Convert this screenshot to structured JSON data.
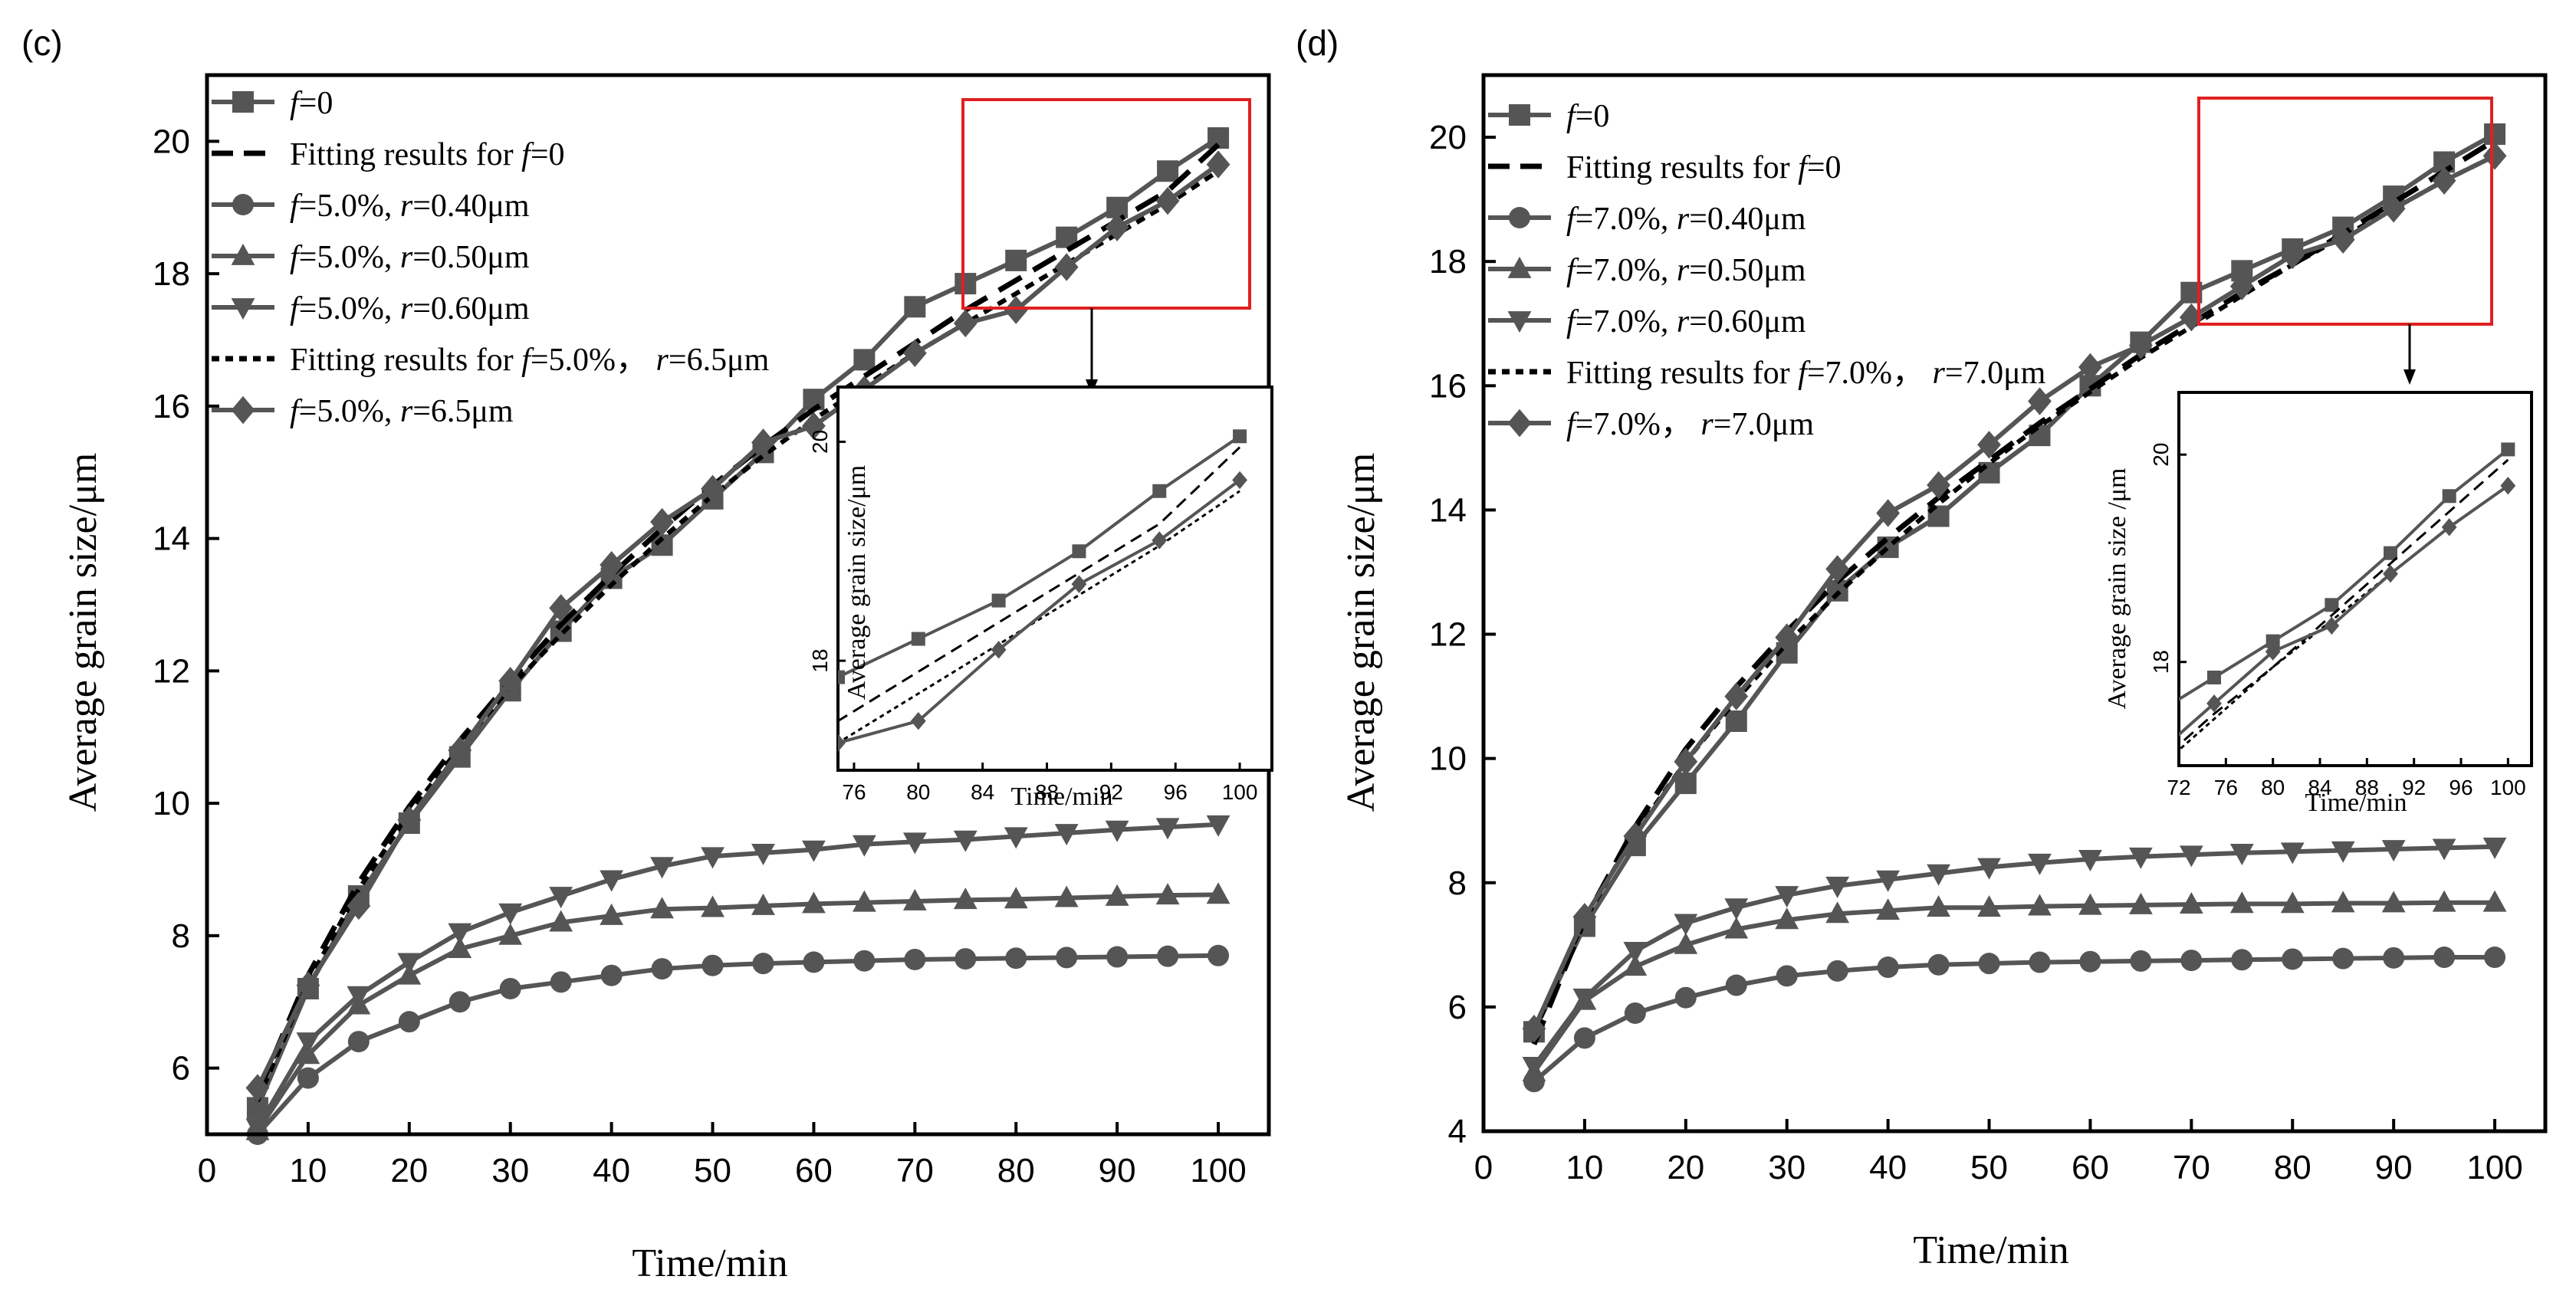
{
  "colors": {
    "series": "#555555",
    "fit": "#000000",
    "highlight": "#e02020",
    "axis": "#000000"
  },
  "chart_data": [
    {
      "type": "line",
      "panel_label": "(c)",
      "xlabel": "Time/min",
      "ylabel": "Average grain size/μm",
      "xlim": [
        0,
        105
      ],
      "ylim": [
        5,
        21
      ],
      "xticks": [
        0,
        10,
        20,
        30,
        40,
        50,
        60,
        70,
        80,
        90,
        100
      ],
      "yticks": [
        6,
        8,
        10,
        12,
        14,
        16,
        18,
        20
      ],
      "legend_position": "top-left",
      "series": [
        {
          "legend_italic": "f",
          "legend_text": "=0",
          "style": "solid",
          "marker": "square",
          "x": [
            5,
            10,
            15,
            20,
            25,
            30,
            35,
            40,
            45,
            50,
            55,
            60,
            65,
            70,
            75,
            80,
            85,
            90,
            95,
            100
          ],
          "values": [
            5.4,
            7.2,
            8.6,
            9.7,
            10.7,
            11.7,
            12.6,
            13.4,
            13.9,
            14.6,
            15.3,
            16.1,
            16.7,
            17.5,
            17.85,
            18.2,
            18.55,
            19.0,
            19.55,
            20.05
          ]
        },
        {
          "legend_text": "Fitting results for ",
          "legend_italic": "f",
          "legend_tail": "=0",
          "style": "dashed",
          "marker": "none",
          "x": [
            5,
            10,
            15,
            20,
            25,
            30,
            35,
            40,
            45,
            50,
            55,
            60,
            65,
            70,
            75,
            80,
            85,
            90,
            95,
            100
          ],
          "values": [
            5.6,
            7.4,
            8.8,
            9.95,
            10.95,
            11.85,
            12.7,
            13.45,
            14.15,
            14.8,
            15.4,
            15.95,
            16.45,
            16.95,
            17.45,
            17.9,
            18.35,
            18.8,
            19.25,
            19.95
          ]
        },
        {
          "legend_italic": "f",
          "legend_text": "=5.0%, ",
          "legend_italic2": "r",
          "legend_tail": "=0.40μm",
          "style": "solid",
          "marker": "circle",
          "x": [
            5,
            10,
            15,
            20,
            25,
            30,
            35,
            40,
            45,
            50,
            55,
            60,
            65,
            70,
            75,
            80,
            85,
            90,
            95,
            100
          ],
          "values": [
            5.0,
            5.85,
            6.4,
            6.7,
            7.0,
            7.2,
            7.3,
            7.4,
            7.5,
            7.55,
            7.58,
            7.6,
            7.62,
            7.64,
            7.65,
            7.66,
            7.67,
            7.68,
            7.69,
            7.7
          ]
        },
        {
          "legend_italic": "f",
          "legend_text": "=5.0%, ",
          "legend_italic2": "r",
          "legend_tail": "=0.50μm",
          "style": "solid",
          "marker": "triangle-up",
          "x": [
            5,
            10,
            15,
            20,
            25,
            30,
            35,
            40,
            45,
            50,
            55,
            60,
            65,
            70,
            75,
            80,
            85,
            90,
            95,
            100
          ],
          "values": [
            5.05,
            6.2,
            6.95,
            7.4,
            7.8,
            8.0,
            8.2,
            8.3,
            8.4,
            8.42,
            8.45,
            8.48,
            8.5,
            8.52,
            8.54,
            8.55,
            8.57,
            8.59,
            8.61,
            8.62
          ]
        },
        {
          "legend_italic": "f",
          "legend_text": "=5.0%, ",
          "legend_italic2": "r",
          "legend_tail": "=0.60μm",
          "style": "solid",
          "marker": "triangle-down",
          "x": [
            5,
            10,
            15,
            20,
            25,
            30,
            35,
            40,
            45,
            50,
            55,
            60,
            65,
            70,
            75,
            80,
            85,
            90,
            95,
            100
          ],
          "values": [
            5.1,
            6.4,
            7.1,
            7.6,
            8.05,
            8.35,
            8.6,
            8.85,
            9.05,
            9.2,
            9.25,
            9.3,
            9.38,
            9.42,
            9.45,
            9.5,
            9.55,
            9.6,
            9.64,
            9.68
          ]
        },
        {
          "legend_text": "Fitting results for ",
          "legend_italic": "f",
          "legend_tail": "=5.0%， ",
          "legend_italic2": "r",
          "legend_tail2": "=6.5μm",
          "style": "dotted",
          "marker": "none",
          "x": [
            5,
            10,
            15,
            20,
            25,
            30,
            35,
            40,
            45,
            50,
            55,
            60,
            65,
            70,
            75,
            80,
            85,
            90,
            95,
            100
          ],
          "values": [
            5.5,
            7.3,
            8.7,
            9.85,
            10.85,
            11.75,
            12.55,
            13.3,
            14.0,
            14.65,
            15.25,
            15.8,
            16.3,
            16.8,
            17.25,
            17.7,
            18.15,
            18.6,
            19.05,
            19.55
          ]
        },
        {
          "legend_italic": "f",
          "legend_text": "=5.0%, ",
          "legend_italic2": "r",
          "legend_tail": "=6.5μm",
          "style": "solid",
          "marker": "diamond",
          "x": [
            5,
            10,
            15,
            20,
            25,
            30,
            35,
            40,
            45,
            50,
            55,
            60,
            65,
            70,
            75,
            80,
            85,
            90,
            95,
            100
          ],
          "values": [
            5.7,
            7.25,
            8.45,
            9.75,
            10.8,
            11.85,
            12.95,
            13.6,
            14.25,
            14.75,
            15.45,
            15.7,
            16.25,
            16.8,
            17.25,
            17.45,
            18.1,
            18.7,
            19.1,
            19.65
          ]
        }
      ],
      "inset": {
        "xlabel": "Time/min",
        "ylabel": "Average grain size/μm",
        "xlim": [
          75,
          102
        ],
        "ylim": [
          17.0,
          20.5
        ],
        "xticks": [
          76,
          80,
          84,
          88,
          92,
          96,
          100
        ],
        "yticks": [
          18,
          20
        ]
      }
    },
    {
      "type": "line",
      "panel_label": "(d)",
      "xlabel": "Time/min",
      "ylabel": "Average grain size/μm",
      "xlim": [
        0,
        105
      ],
      "ylim": [
        4,
        21
      ],
      "xticks": [
        0,
        10,
        20,
        30,
        40,
        50,
        60,
        70,
        80,
        90,
        100
      ],
      "yticks": [
        4,
        6,
        8,
        10,
        12,
        14,
        16,
        18,
        20
      ],
      "legend_position": "top-left",
      "series": [
        {
          "legend_italic": "f",
          "legend_text": "=0",
          "style": "solid",
          "marker": "square",
          "x": [
            5,
            10,
            15,
            20,
            25,
            30,
            35,
            40,
            45,
            50,
            55,
            60,
            65,
            70,
            75,
            80,
            85,
            90,
            95,
            100
          ],
          "values": [
            5.6,
            7.3,
            8.6,
            9.6,
            10.6,
            11.7,
            12.7,
            13.4,
            13.9,
            14.6,
            15.2,
            16.0,
            16.7,
            17.5,
            17.85,
            18.2,
            18.55,
            19.05,
            19.6,
            20.05
          ]
        },
        {
          "legend_text": "Fitting results for ",
          "legend_italic": "f",
          "legend_tail": "=0",
          "style": "dashed",
          "marker": "none",
          "x": [
            5,
            10,
            15,
            20,
            25,
            30,
            35,
            40,
            45,
            50,
            55,
            60,
            65,
            70,
            75,
            80,
            85,
            90,
            95,
            100
          ],
          "values": [
            5.4,
            7.4,
            8.9,
            10.15,
            11.15,
            12.05,
            12.85,
            13.55,
            14.2,
            14.8,
            15.4,
            15.95,
            16.5,
            17.0,
            17.5,
            17.95,
            18.45,
            18.95,
            19.45,
            19.95
          ]
        },
        {
          "legend_italic": "f",
          "legend_text": "=7.0%, ",
          "legend_italic2": "r",
          "legend_tail": "=0.40μm",
          "style": "solid",
          "marker": "circle",
          "x": [
            5,
            10,
            15,
            20,
            25,
            30,
            35,
            40,
            45,
            50,
            55,
            60,
            65,
            70,
            75,
            80,
            85,
            90,
            95,
            100
          ],
          "values": [
            4.8,
            5.5,
            5.9,
            6.15,
            6.35,
            6.5,
            6.58,
            6.64,
            6.68,
            6.7,
            6.72,
            6.73,
            6.74,
            6.75,
            6.76,
            6.77,
            6.78,
            6.79,
            6.8,
            6.8
          ]
        },
        {
          "legend_italic": "f",
          "legend_text": "=7.0%, ",
          "legend_italic2": "r",
          "legend_tail": "=0.50μm",
          "style": "solid",
          "marker": "triangle-up",
          "x": [
            5,
            10,
            15,
            20,
            25,
            30,
            35,
            40,
            45,
            50,
            55,
            60,
            65,
            70,
            75,
            80,
            85,
            90,
            95,
            100
          ],
          "values": [
            4.95,
            6.1,
            6.65,
            7.0,
            7.25,
            7.4,
            7.5,
            7.55,
            7.6,
            7.6,
            7.62,
            7.63,
            7.64,
            7.65,
            7.66,
            7.66,
            7.67,
            7.67,
            7.68,
            7.68
          ]
        },
        {
          "legend_italic": "f",
          "legend_text": "=7.0%, ",
          "legend_italic2": "r",
          "legend_tail": "=0.60μm",
          "style": "solid",
          "marker": "triangle-down",
          "x": [
            5,
            10,
            15,
            20,
            25,
            30,
            35,
            40,
            45,
            50,
            55,
            60,
            65,
            70,
            75,
            80,
            85,
            90,
            95,
            100
          ],
          "values": [
            5.05,
            6.15,
            6.9,
            7.35,
            7.6,
            7.8,
            7.95,
            8.05,
            8.15,
            8.25,
            8.32,
            8.38,
            8.42,
            8.45,
            8.48,
            8.5,
            8.52,
            8.54,
            8.56,
            8.58
          ]
        },
        {
          "legend_text": "Fitting results for ",
          "legend_italic": "f",
          "legend_tail": "=7.0%， ",
          "legend_italic2": "r",
          "legend_tail2": "=7.0μm",
          "style": "dotted",
          "marker": "none",
          "x": [
            5,
            10,
            15,
            20,
            25,
            30,
            35,
            40,
            45,
            50,
            55,
            60,
            65,
            70,
            75,
            80,
            85,
            90,
            95,
            100
          ],
          "values": [
            5.6,
            7.4,
            8.8,
            9.95,
            10.95,
            11.85,
            12.65,
            13.4,
            14.1,
            14.75,
            15.35,
            15.9,
            16.45,
            16.95,
            17.45,
            17.95,
            18.4,
            18.85,
            19.3,
            19.7
          ]
        },
        {
          "legend_italic": "f",
          "legend_text": "=7.0%， ",
          "legend_italic2": "r",
          "legend_tail": "=7.0μm",
          "style": "solid",
          "marker": "diamond",
          "x": [
            5,
            10,
            15,
            20,
            25,
            30,
            35,
            40,
            45,
            50,
            55,
            60,
            65,
            70,
            75,
            80,
            85,
            90,
            95,
            100
          ],
          "values": [
            5.65,
            7.45,
            8.75,
            9.95,
            11.0,
            11.95,
            13.05,
            13.95,
            14.4,
            15.05,
            15.75,
            16.3,
            16.65,
            17.1,
            17.6,
            18.1,
            18.35,
            18.85,
            19.3,
            19.7
          ]
        }
      ],
      "inset": {
        "xlabel": "Time/min",
        "ylabel": "Average grain size /μm",
        "xlim": [
          72,
          102
        ],
        "ylim": [
          17.0,
          20.6
        ],
        "xticks": [
          72,
          76,
          80,
          84,
          88,
          92,
          96,
          100
        ],
        "yticks": [
          18,
          20
        ]
      }
    }
  ]
}
